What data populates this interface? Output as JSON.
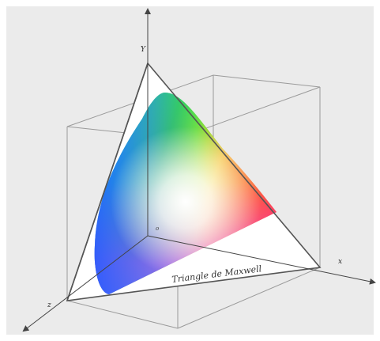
{
  "diagram": {
    "caption": "Triangle de Maxwell",
    "axes": {
      "y_label": "Y",
      "x_label": "x",
      "z_label": "z",
      "origin_label": "o"
    },
    "colors": {
      "background": "#ebebeb",
      "cube_edge": "#9a9a9a",
      "axis": "#444444",
      "triangle_fill": "#ffffff",
      "triangle_edge": "#555555",
      "side_face": "#9c9c9c"
    }
  }
}
